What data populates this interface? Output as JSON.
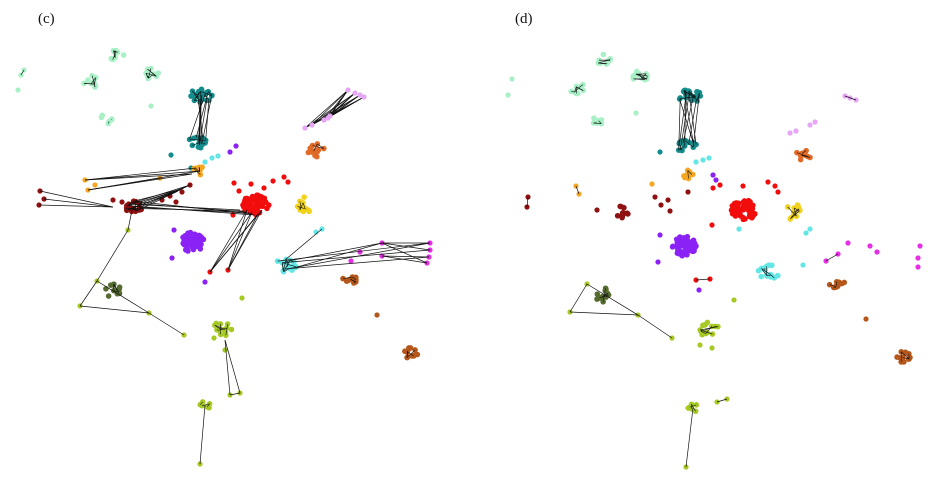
{
  "panels": [
    {
      "label": "(c)"
    },
    {
      "label": "(d)"
    }
  ],
  "colors": {
    "mint": "#a8f0c6",
    "teal": "#138c8c",
    "lavender": "#e6a6f5",
    "orange_brown": "#e06a28",
    "cyan": "#62e6e6",
    "orange": "#f5a623",
    "red": "#f20d0d",
    "dark_red": "#8f1111",
    "purple": "#8a22f5",
    "gold": "#f2d31b",
    "magenta": "#e62ee6",
    "brown": "#b5561b",
    "olive_dark": "#556b2f",
    "yellow_green": "#a6c924",
    "edge": "#111111"
  }
}
